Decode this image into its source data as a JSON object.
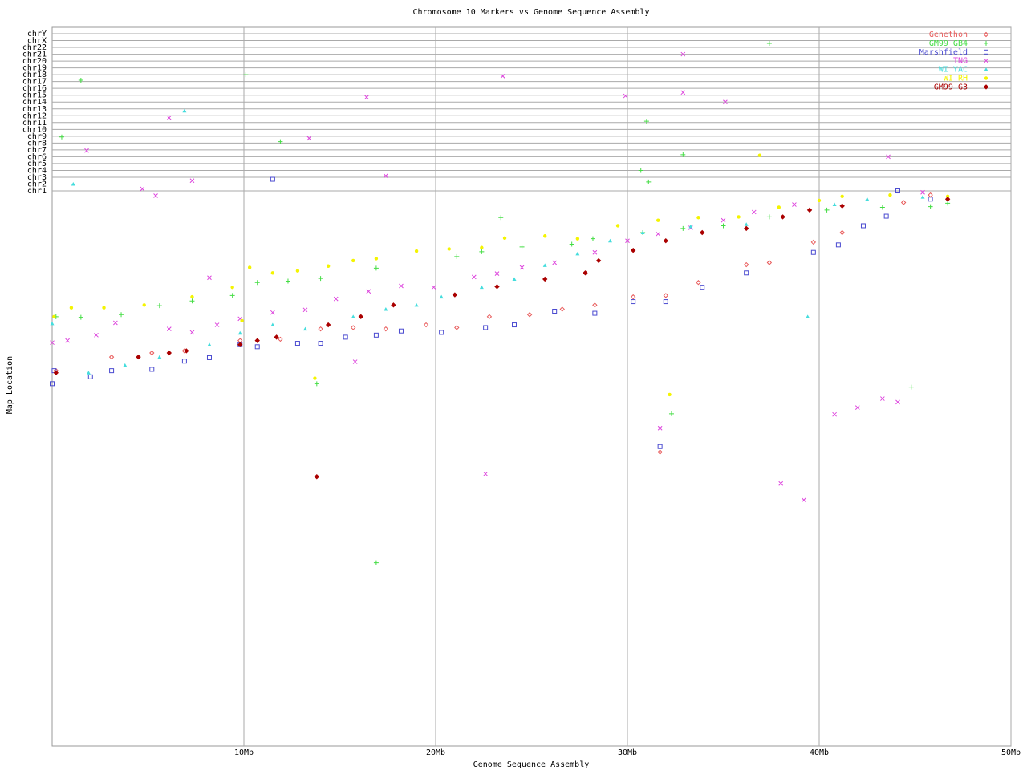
{
  "chart_data": {
    "type": "scatter",
    "title": "Chromosome 10 Markers vs Genome Sequence Assembly",
    "x_label": "Genome Sequence Assembly",
    "y_label": "Map Location",
    "xlim": [
      0,
      50
    ],
    "xticks": [
      {
        "value": 10,
        "label": "10Mb"
      },
      {
        "value": 20,
        "label": "20Mb"
      },
      {
        "value": 30,
        "label": "30Mb"
      },
      {
        "value": 40,
        "label": "40Mb"
      },
      {
        "value": 50,
        "label": "50Mb"
      }
    ],
    "ylim": [
      -80.2,
      24.94
    ],
    "yticks": [
      {
        "value": 1,
        "label": "chr1"
      },
      {
        "value": 2,
        "label": "chr2"
      },
      {
        "value": 3,
        "label": "chr3"
      },
      {
        "value": 4,
        "label": "chr4"
      },
      {
        "value": 5,
        "label": "chr5"
      },
      {
        "value": 6,
        "label": "chr6"
      },
      {
        "value": 7,
        "label": "chr7"
      },
      {
        "value": 8,
        "label": "chr8"
      },
      {
        "value": 9,
        "label": "chr9"
      },
      {
        "value": 10,
        "label": "chr10"
      },
      {
        "value": 11,
        "label": "chr11"
      },
      {
        "value": 12,
        "label": "chr12"
      },
      {
        "value": 13,
        "label": "chr13"
      },
      {
        "value": 14,
        "label": "chr14"
      },
      {
        "value": 15,
        "label": "chr15"
      },
      {
        "value": 16,
        "label": "chr16"
      },
      {
        "value": 17,
        "label": "chr17"
      },
      {
        "value": 18,
        "label": "chr18"
      },
      {
        "value": 19,
        "label": "chr19"
      },
      {
        "value": 20,
        "label": "chr20"
      },
      {
        "value": 21,
        "label": "chr21"
      },
      {
        "value": 22,
        "label": "chr22"
      },
      {
        "value": 23,
        "label": "chrX"
      },
      {
        "value": 24,
        "label": "chrY"
      }
    ],
    "grid": true,
    "legend": "top-right",
    "series": [
      {
        "name": "Genethon",
        "color": "#e85a5a",
        "marker": "diamond",
        "x": [
          0.2,
          3.1,
          5.2,
          6.9,
          9.8,
          11.9,
          14.0,
          15.7,
          17.4,
          19.5,
          21.1,
          22.8,
          24.9,
          26.6,
          28.3,
          30.3,
          32.0,
          33.7,
          36.2,
          37.4,
          39.7,
          41.2,
          44.4,
          31.7,
          45.8
        ],
        "values": [
          -25.3,
          -23.3,
          -22.7,
          -22.4,
          -20.9,
          -20.7,
          -19.2,
          -19.0,
          -19.2,
          -18.6,
          -19.0,
          -17.4,
          -17.1,
          -16.3,
          -15.7,
          -14.5,
          -14.3,
          -12.4,
          -9.8,
          -9.5,
          -6.5,
          -5.1,
          -0.7,
          -37.2,
          0.4
        ]
      },
      {
        "name": "GM99 GB4",
        "color": "#44dd44",
        "marker": "plus",
        "x": [
          0.2,
          1.5,
          3.6,
          5.6,
          7.3,
          9.4,
          10.7,
          12.3,
          14.0,
          16.9,
          21.1,
          22.4,
          24.5,
          27.1,
          28.2,
          30.8,
          32.9,
          35.0,
          37.4,
          40.4,
          43.3,
          45.8,
          46.7,
          0.5,
          1.5,
          10.1,
          11.9,
          23.4,
          16.9,
          44.8,
          32.3,
          37.4,
          31.0,
          30.7,
          31.1,
          32.9,
          13.8
        ],
        "values": [
          -17.4,
          -17.5,
          -17.1,
          -15.8,
          -15.1,
          -14.3,
          -12.4,
          -12.2,
          -11.8,
          -10.3,
          -8.6,
          -7.9,
          -7.2,
          -6.8,
          -6.0,
          -5.1,
          -4.5,
          -4.1,
          -2.8,
          -1.8,
          -1.4,
          -1.3,
          -0.8,
          8.9,
          17.2,
          18.0,
          8.2,
          -2.9,
          -53.4,
          -27.7,
          -31.6,
          22.6,
          11.2,
          4.0,
          2.3,
          6.3,
          -27.2
        ]
      },
      {
        "name": "Marshfield",
        "color": "#4a4ad0",
        "marker": "square",
        "x": [
          0.0,
          0.1,
          2.0,
          3.1,
          5.2,
          6.9,
          8.2,
          9.8,
          10.7,
          12.8,
          14.0,
          15.3,
          16.9,
          18.2,
          20.3,
          22.6,
          24.1,
          26.2,
          28.3,
          30.3,
          32.0,
          33.9,
          36.2,
          39.7,
          41.0,
          42.3,
          43.5,
          44.1,
          45.8,
          11.5,
          31.7
        ],
        "values": [
          -27.2,
          -25.3,
          -26.2,
          -25.3,
          -25.1,
          -23.9,
          -23.4,
          -21.5,
          -21.8,
          -21.3,
          -21.3,
          -20.4,
          -20.1,
          -19.5,
          -19.7,
          -19.0,
          -18.6,
          -16.6,
          -16.9,
          -15.2,
          -15.2,
          -13.1,
          -11.0,
          -8.0,
          -6.9,
          -4.1,
          -2.7,
          1.0,
          -0.2,
          2.7,
          -36.4
        ]
      },
      {
        "name": "TNG",
        "color": "#dd44dd",
        "marker": "cross",
        "x": [
          0.0,
          0.8,
          2.3,
          3.3,
          6.1,
          7.3,
          8.6,
          9.8,
          11.5,
          13.2,
          14.8,
          16.5,
          18.2,
          19.9,
          22.0,
          23.2,
          24.5,
          26.2,
          28.3,
          30.0,
          31.6,
          33.3,
          35.0,
          36.6,
          38.7,
          40.8,
          42.0,
          43.3,
          44.1,
          45.4,
          1.8,
          6.1,
          7.3,
          4.7,
          5.4,
          8.2,
          13.4,
          16.4,
          17.4,
          23.5,
          29.9,
          32.9,
          32.9,
          35.1,
          43.6,
          22.6,
          38.0,
          39.2,
          31.7,
          15.8
        ],
        "values": [
          -21.2,
          -20.9,
          -20.1,
          -18.3,
          -19.2,
          -19.7,
          -18.6,
          -17.7,
          -16.8,
          -16.4,
          -14.8,
          -13.7,
          -12.9,
          -13.1,
          -11.6,
          -11.1,
          -10.2,
          -9.5,
          -8.0,
          -6.3,
          -5.3,
          -4.4,
          -3.3,
          -2.1,
          -1.0,
          -31.7,
          -30.7,
          -29.4,
          -29.9,
          0.8,
          6.9,
          11.7,
          2.5,
          1.3,
          0.3,
          -11.7,
          8.7,
          14.7,
          3.2,
          17.8,
          14.9,
          21.0,
          15.4,
          14.0,
          6.0,
          -40.4,
          -41.8,
          -44.2,
          -33.7,
          -24.0
        ]
      },
      {
        "name": "WI YAC",
        "color": "#44dddd",
        "marker": "triangle",
        "x": [
          1.1,
          6.9,
          0.0,
          1.9,
          3.8,
          5.6,
          8.2,
          9.8,
          11.5,
          13.2,
          15.7,
          17.4,
          19.0,
          20.3,
          22.4,
          24.1,
          25.7,
          27.4,
          29.1,
          30.8,
          33.3,
          36.2,
          39.4,
          40.8,
          42.5,
          45.4
        ],
        "values": [
          2.0,
          12.7,
          -18.4,
          -25.6,
          -24.5,
          -23.3,
          -21.5,
          -19.8,
          -18.6,
          -19.2,
          -17.4,
          -16.3,
          -15.7,
          -14.5,
          -13.1,
          -11.9,
          -9.9,
          -8.2,
          -6.3,
          -5.1,
          -4.2,
          -3.9,
          -17.4,
          -1.0,
          -0.2,
          0.1
        ]
      },
      {
        "name": "WI RH",
        "color": "#f4f400",
        "marker": "circle",
        "x": [
          0.1,
          1.0,
          2.7,
          4.8,
          7.3,
          9.4,
          10.3,
          11.5,
          12.8,
          14.4,
          15.7,
          16.9,
          19.0,
          20.7,
          22.4,
          23.6,
          25.7,
          27.4,
          29.5,
          31.6,
          33.7,
          35.8,
          37.9,
          40.0,
          41.2,
          43.7,
          46.7,
          13.7,
          32.2,
          36.9,
          9.9
        ],
        "values": [
          -17.4,
          -16.1,
          -16.1,
          -15.7,
          -14.5,
          -13.1,
          -10.2,
          -11.0,
          -10.7,
          -10.0,
          -9.2,
          -8.9,
          -7.8,
          -7.5,
          -7.3,
          -5.9,
          -5.6,
          -6.0,
          -4.1,
          -3.3,
          -2.9,
          -2.8,
          -1.4,
          -0.4,
          0.2,
          0.4,
          0.2,
          -26.4,
          -28.8,
          6.2,
          -18.0
        ]
      },
      {
        "name": "GM99 G3",
        "color": "#aa0000",
        "marker": "filled-diamond",
        "x": [
          0.2,
          4.5,
          6.1,
          7.0,
          9.8,
          10.7,
          11.7,
          14.4,
          16.1,
          17.8,
          21.0,
          23.2,
          25.7,
          27.8,
          28.5,
          30.3,
          32.0,
          33.9,
          36.2,
          38.1,
          39.5,
          41.2,
          46.7,
          13.8
        ],
        "values": [
          -25.6,
          -23.3,
          -22.7,
          -22.4,
          -21.5,
          -20.9,
          -20.4,
          -18.6,
          -17.4,
          -15.7,
          -14.2,
          -13.0,
          -11.9,
          -11.0,
          -9.2,
          -7.7,
          -6.3,
          -5.1,
          -4.5,
          -2.8,
          -1.8,
          -1.2,
          -0.2,
          -40.8
        ]
      }
    ]
  }
}
